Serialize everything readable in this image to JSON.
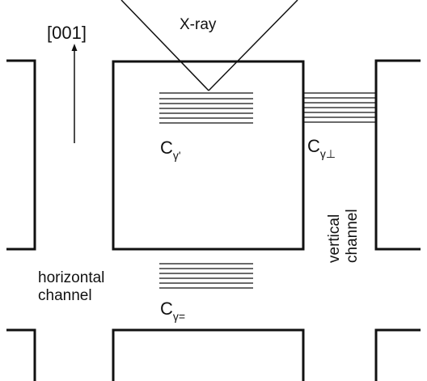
{
  "labels": {
    "direction": "[001]",
    "xray": "X-ray",
    "c_gamma_prime": {
      "base": "C",
      "sub": "γ'"
    },
    "c_gamma_perp": {
      "base": "C",
      "sub": "γ⊥"
    },
    "c_gamma_eq": {
      "base": "C",
      "sub": "γ="
    },
    "horizontal_channel": [
      "horizontal",
      "channel"
    ],
    "vertical_channel": [
      "vertical",
      "channel"
    ]
  },
  "colors": {
    "line": "#111111",
    "background": "#ffffff"
  }
}
